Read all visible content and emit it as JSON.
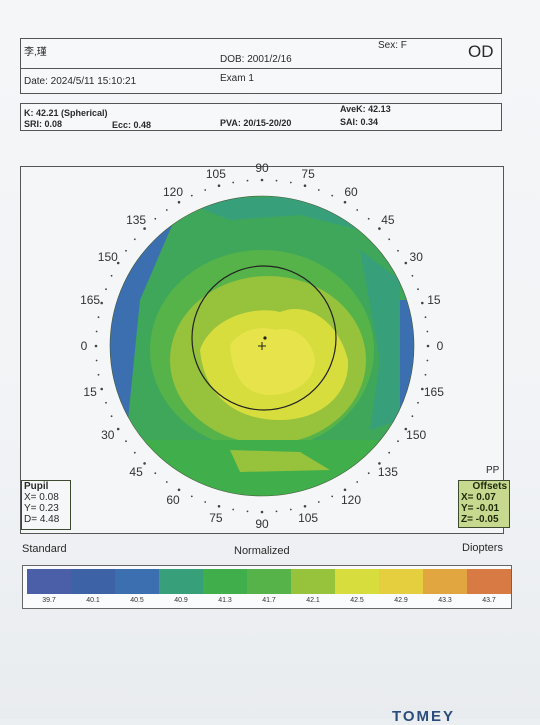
{
  "patient": {
    "name": "李,瑾",
    "dob": "DOB: 2001/2/16",
    "sex": "Sex: F",
    "eye": "OD"
  },
  "exam": {
    "date": "Date: 2024/5/11 15:10:21",
    "label": "Exam 1"
  },
  "indices": {
    "k": "K: 42.21 (Spherical)",
    "avek": "AveK: 42.13",
    "sri": "SRI: 0.08",
    "ecc": "Ecc: 0.48",
    "pva": "PVA: 20/15-20/20",
    "sai": "SAI: 0.34"
  },
  "map": {
    "angles_outer": [
      "90",
      "75",
      "60",
      "45",
      "30",
      "15",
      "0",
      "165",
      "150",
      "135",
      "120",
      "105"
    ],
    "angles_inner_left": [
      "105",
      "120",
      "135",
      "150",
      "165",
      "0",
      "15",
      "30",
      "45",
      "60",
      "75",
      "90"
    ],
    "angle_bottom_right": [
      "105",
      "120",
      "135",
      "150",
      "165"
    ]
  },
  "pupil": {
    "title": "Pupil",
    "x": "X=  0.08",
    "y": "Y=  0.23",
    "d": "D=  4.48"
  },
  "offsets": {
    "pp": "PP",
    "title": "Offsets",
    "x": "X=  0.07",
    "y": "Y= -0.01",
    "z": "Z= -0.05"
  },
  "legend": {
    "standard": "Standard",
    "normalized": "Normalized",
    "diopters": "Diopters",
    "colors": [
      "#4a5fa8",
      "#3d62a6",
      "#3b6fb0",
      "#37a07b",
      "#3fae4b",
      "#55b34a",
      "#96c23c",
      "#d8dd3e",
      "#e5cf3e",
      "#e2a641",
      "#d77a44"
    ],
    "values": [
      "39.7",
      "40.1",
      "40.5",
      "40.9",
      "41.3",
      "41.7",
      "42.1",
      "42.5",
      "42.9",
      "43.3",
      "43.7"
    ]
  },
  "footer": {
    "brand": "TOMEY"
  }
}
